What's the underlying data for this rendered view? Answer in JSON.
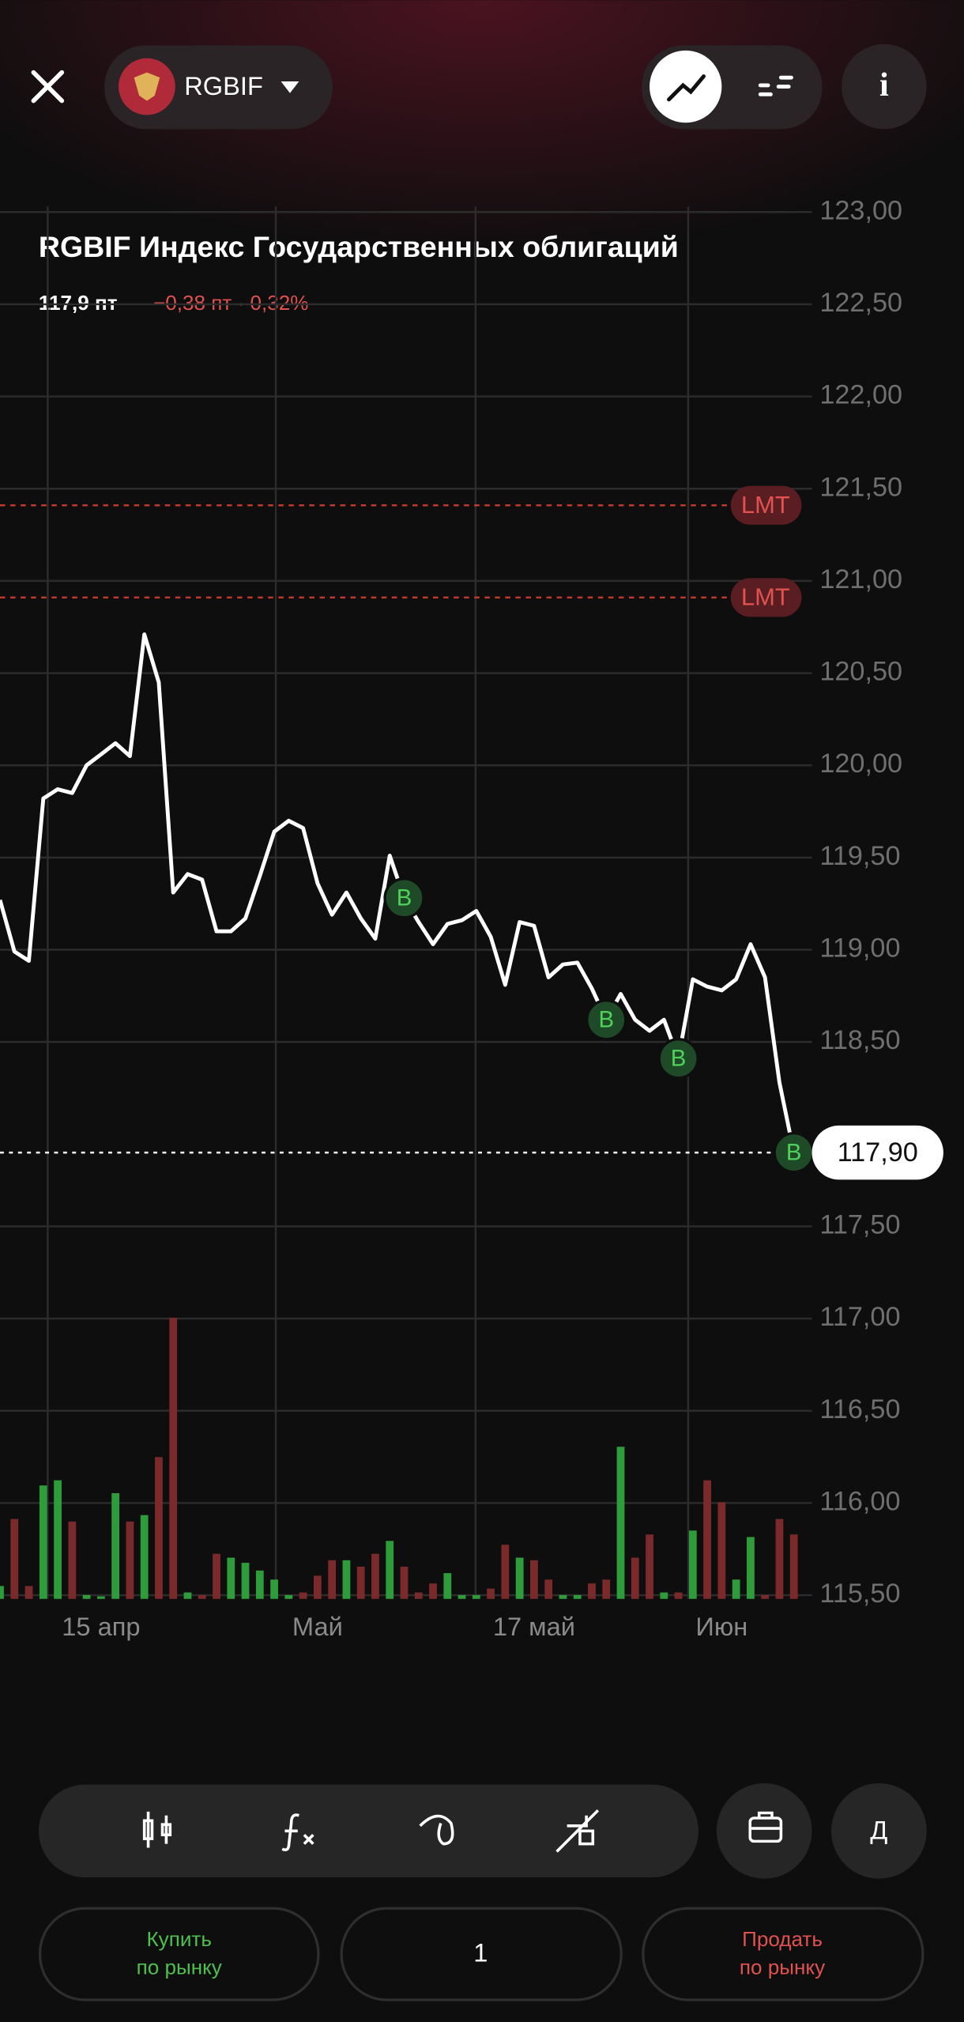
{
  "header": {
    "ticker": "RGBIF"
  },
  "chart_data": {
    "type": "line",
    "title": "RGBIF Индекс Государственных облигаций",
    "subtitle": "117,9 пт",
    "change": "−0,38 пт · 0,32%",
    "categories": [
      null,
      null,
      null,
      null,
      null,
      null,
      null,
      "15 апр",
      null,
      null,
      null,
      null,
      null,
      null,
      null,
      null,
      null,
      null,
      null,
      null,
      null,
      null,
      "Май",
      null,
      null,
      null,
      null,
      null,
      null,
      null,
      null,
      null,
      null,
      null,
      null,
      null,
      null,
      "17 май",
      null,
      null,
      null,
      null,
      null,
      null,
      null,
      null,
      null,
      null,
      null,
      null,
      "Июн",
      null,
      null,
      null,
      null,
      null
    ],
    "values": [
      119.27,
      118.99,
      118.94,
      119.82,
      119.87,
      119.85,
      120.0,
      120.06,
      120.12,
      120.05,
      120.71,
      120.45,
      119.31,
      119.41,
      119.38,
      119.1,
      119.1,
      119.17,
      119.4,
      119.64,
      119.7,
      119.66,
      119.36,
      119.19,
      119.31,
      119.17,
      119.06,
      119.51,
      119.28,
      119.15,
      119.03,
      119.14,
      119.16,
      119.21,
      119.07,
      118.81,
      119.15,
      119.13,
      118.85,
      118.92,
      118.93,
      118.79,
      118.62,
      118.76,
      118.62,
      118.56,
      118.62,
      118.41,
      118.84,
      118.8,
      118.78,
      118.84,
      119.03,
      118.85,
      118.28,
      117.9
    ],
    "color": "#ffffff",
    "volume": {
      "values": [
        10,
        62,
        10,
        88,
        92,
        60,
        3,
        2,
        82,
        60,
        65,
        110,
        218,
        5,
        3,
        35,
        32,
        28,
        22,
        15,
        3,
        5,
        18,
        30,
        30,
        25,
        35,
        45,
        25,
        5,
        12,
        20,
        3,
        3,
        8,
        42,
        32,
        30,
        15,
        3,
        3,
        12,
        15,
        118,
        32,
        50,
        5,
        5,
        53,
        92,
        75,
        15,
        48,
        3,
        62,
        50
      ],
      "up_color": "#2e9c3a",
      "down_color": "#7a2a2a"
    },
    "ylim": [
      115.48,
      123.1
    ],
    "yticks": [
      {
        "value": 123,
        "label": "123,00"
      },
      {
        "value": 122.5,
        "label": "122,50"
      },
      {
        "value": 122,
        "label": "122,00"
      },
      {
        "value": 121.5,
        "label": "121,50"
      },
      {
        "value": 121,
        "label": "121,00"
      },
      {
        "value": 120.5,
        "label": "120,50"
      },
      {
        "value": 120,
        "label": "120,00"
      },
      {
        "value": 119.5,
        "label": "119,50"
      },
      {
        "value": 119,
        "label": "119,00"
      },
      {
        "value": 118.5,
        "label": "118,50"
      },
      {
        "value": 117.5,
        "label": "117,50"
      },
      {
        "value": 117,
        "label": "117,00"
      },
      {
        "value": 116.5,
        "label": "116,50"
      },
      {
        "value": 116,
        "label": "116,00"
      },
      {
        "value": 115.5,
        "label": "115,50"
      }
    ],
    "grid": true,
    "levels": [
      {
        "label": "LMT",
        "value": 121.41
      },
      {
        "label": "LMT",
        "value": 120.91
      }
    ],
    "last": {
      "value": 117.9,
      "label": "117,90"
    },
    "trades": [
      {
        "index": 28,
        "label": "B"
      },
      {
        "index": 42,
        "label": "B"
      },
      {
        "index": 47,
        "label": "B"
      },
      {
        "index": 55,
        "label": "B"
      }
    ]
  },
  "toolbar": {
    "period": "Д"
  },
  "order": {
    "buy": [
      "Купить",
      "по рынку"
    ],
    "quantity": "1",
    "sell": [
      "Продать",
      "по рынку"
    ]
  }
}
